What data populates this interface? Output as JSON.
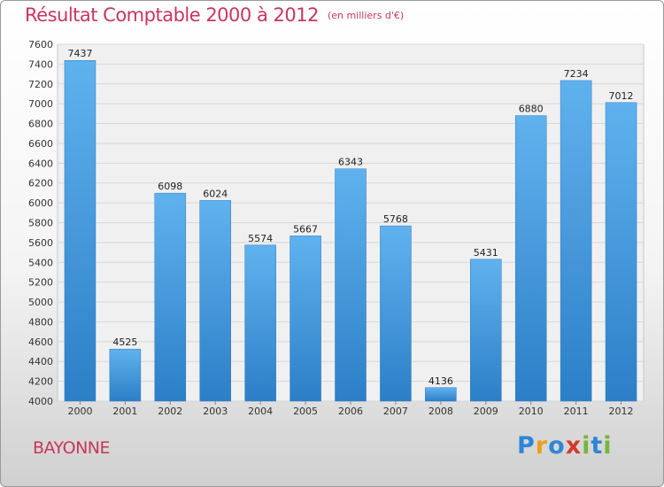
{
  "title": "Résultat Comptable 2000 à 2012",
  "subtitle": "(en milliers d'€)",
  "city": "BAYONNE",
  "logo": {
    "p": "P",
    "r": "r",
    "o": "o",
    "x": "x",
    "i1": "i",
    "t": "t",
    "i2": "i"
  },
  "colors": {
    "bar": "#3d92d8",
    "bar_light": "#5fb0ec",
    "title": "#c8365e"
  },
  "chart_data": {
    "type": "bar",
    "title": "Résultat Comptable 2000 à 2012",
    "xlabel": "",
    "ylabel": "",
    "ylim": [
      4000,
      7600
    ],
    "ytick_step": 200,
    "grid": true,
    "categories": [
      "2000",
      "2001",
      "2002",
      "2003",
      "2004",
      "2005",
      "2006",
      "2007",
      "2008",
      "2009",
      "2010",
      "2011",
      "2012"
    ],
    "values": [
      7437,
      4525,
      6098,
      6024,
      5574,
      5667,
      6343,
      5768,
      4136,
      5431,
      6880,
      7234,
      7012
    ]
  }
}
